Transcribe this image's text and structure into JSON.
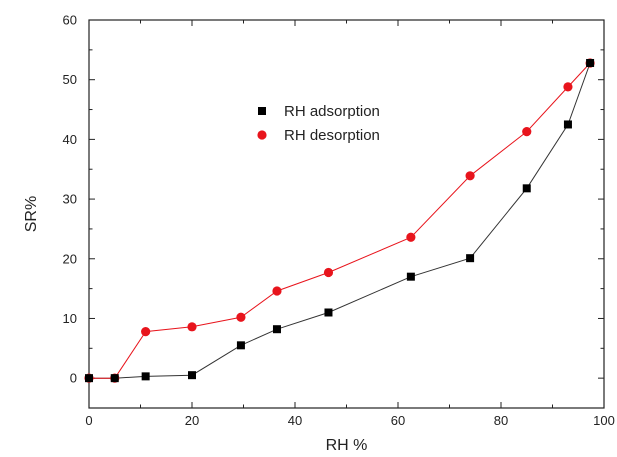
{
  "chart_data": {
    "type": "scatter",
    "xlabel": "RH %",
    "ylabel": "SR%",
    "xlim": [
      0,
      100
    ],
    "ylim": [
      -5,
      60
    ],
    "xticks": [
      0,
      20,
      40,
      60,
      80,
      100
    ],
    "yticks": [
      0,
      10,
      20,
      30,
      40,
      50,
      60
    ],
    "grid": false,
    "legend_position": "upper-center",
    "series": [
      {
        "name": "RH adsorption",
        "color": "#000000",
        "marker": "square",
        "line_color": "#333333",
        "x": [
          0,
          5,
          11,
          20,
          29.5,
          36.5,
          46.5,
          62.5,
          74,
          85,
          93,
          97.3
        ],
        "y": [
          0,
          0,
          0.3,
          0.5,
          5.5,
          8.2,
          11,
          17,
          20.1,
          31.8,
          42.5,
          52.8
        ]
      },
      {
        "name": "RH desorption",
        "color": "#e8141c",
        "marker": "circle",
        "line_color": "#e8141c",
        "x": [
          0,
          5,
          11,
          20,
          29.5,
          36.5,
          46.5,
          62.5,
          74,
          85,
          93,
          97.3
        ],
        "y": [
          0,
          0,
          7.8,
          8.6,
          10.2,
          14.6,
          17.7,
          23.6,
          33.9,
          41.3,
          48.8,
          52.8
        ]
      }
    ]
  }
}
